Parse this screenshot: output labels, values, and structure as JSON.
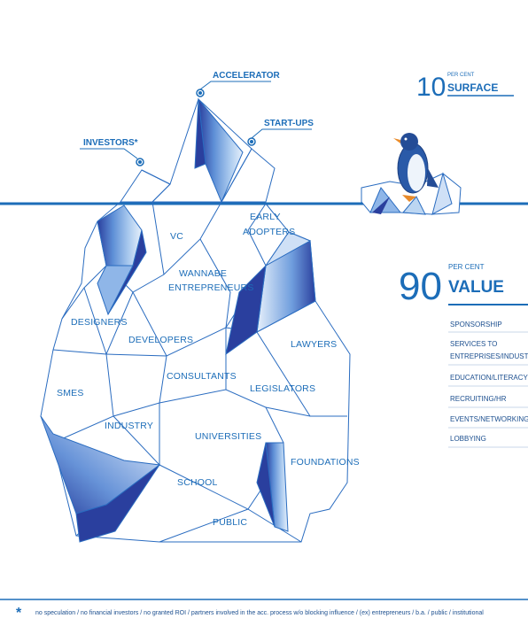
{
  "callouts": {
    "accelerator": "ACCELERATOR",
    "startups": "START-UPS",
    "investors": "INVESTORS*"
  },
  "surface": {
    "number": "10",
    "per_cent": "PER CENT",
    "word": "SURFACE"
  },
  "value": {
    "number": "90",
    "per_cent": "PER CENT",
    "word": "VALUE"
  },
  "iceberg_labels": {
    "vc": "VC",
    "early": "EARLY",
    "adopters": "ADOPTERS",
    "wannabe": "WANNABE",
    "entrepreneurs": "ENTREPRENEURS",
    "designers": "DESIGNERS",
    "developers": "DEVELOPERS",
    "lawyers": "LAWYERS",
    "consultants": "CONSULTANTS",
    "legislators": "LEGISLATORS",
    "smes": "SMES",
    "industry": "INDUSTRY",
    "universities": "UNIVERSITIES",
    "foundations": "FOUNDATIONS",
    "school": "SCHOOL",
    "public": "PUBLIC"
  },
  "value_list": [
    "SPONSORSHIP",
    "SERVICES TO",
    "ENTREPRISES/INDUSTRY",
    "EDUCATION/LITERACY",
    "RECRUITING/HR",
    "EVENTS/NETWORKING",
    "LOBBYING"
  ],
  "footnote": {
    "mark": "*",
    "text": "no speculation / no financial investors / no granted ROI / partners involved in the acc. process w/o blocking influence / (ex) entrepreneurs / b.a. / public / institutional"
  },
  "colors": {
    "primary_blue": "#1c6db8",
    "dark_blue": "#2a3f9e",
    "light_blue": "#bcd6f2"
  }
}
